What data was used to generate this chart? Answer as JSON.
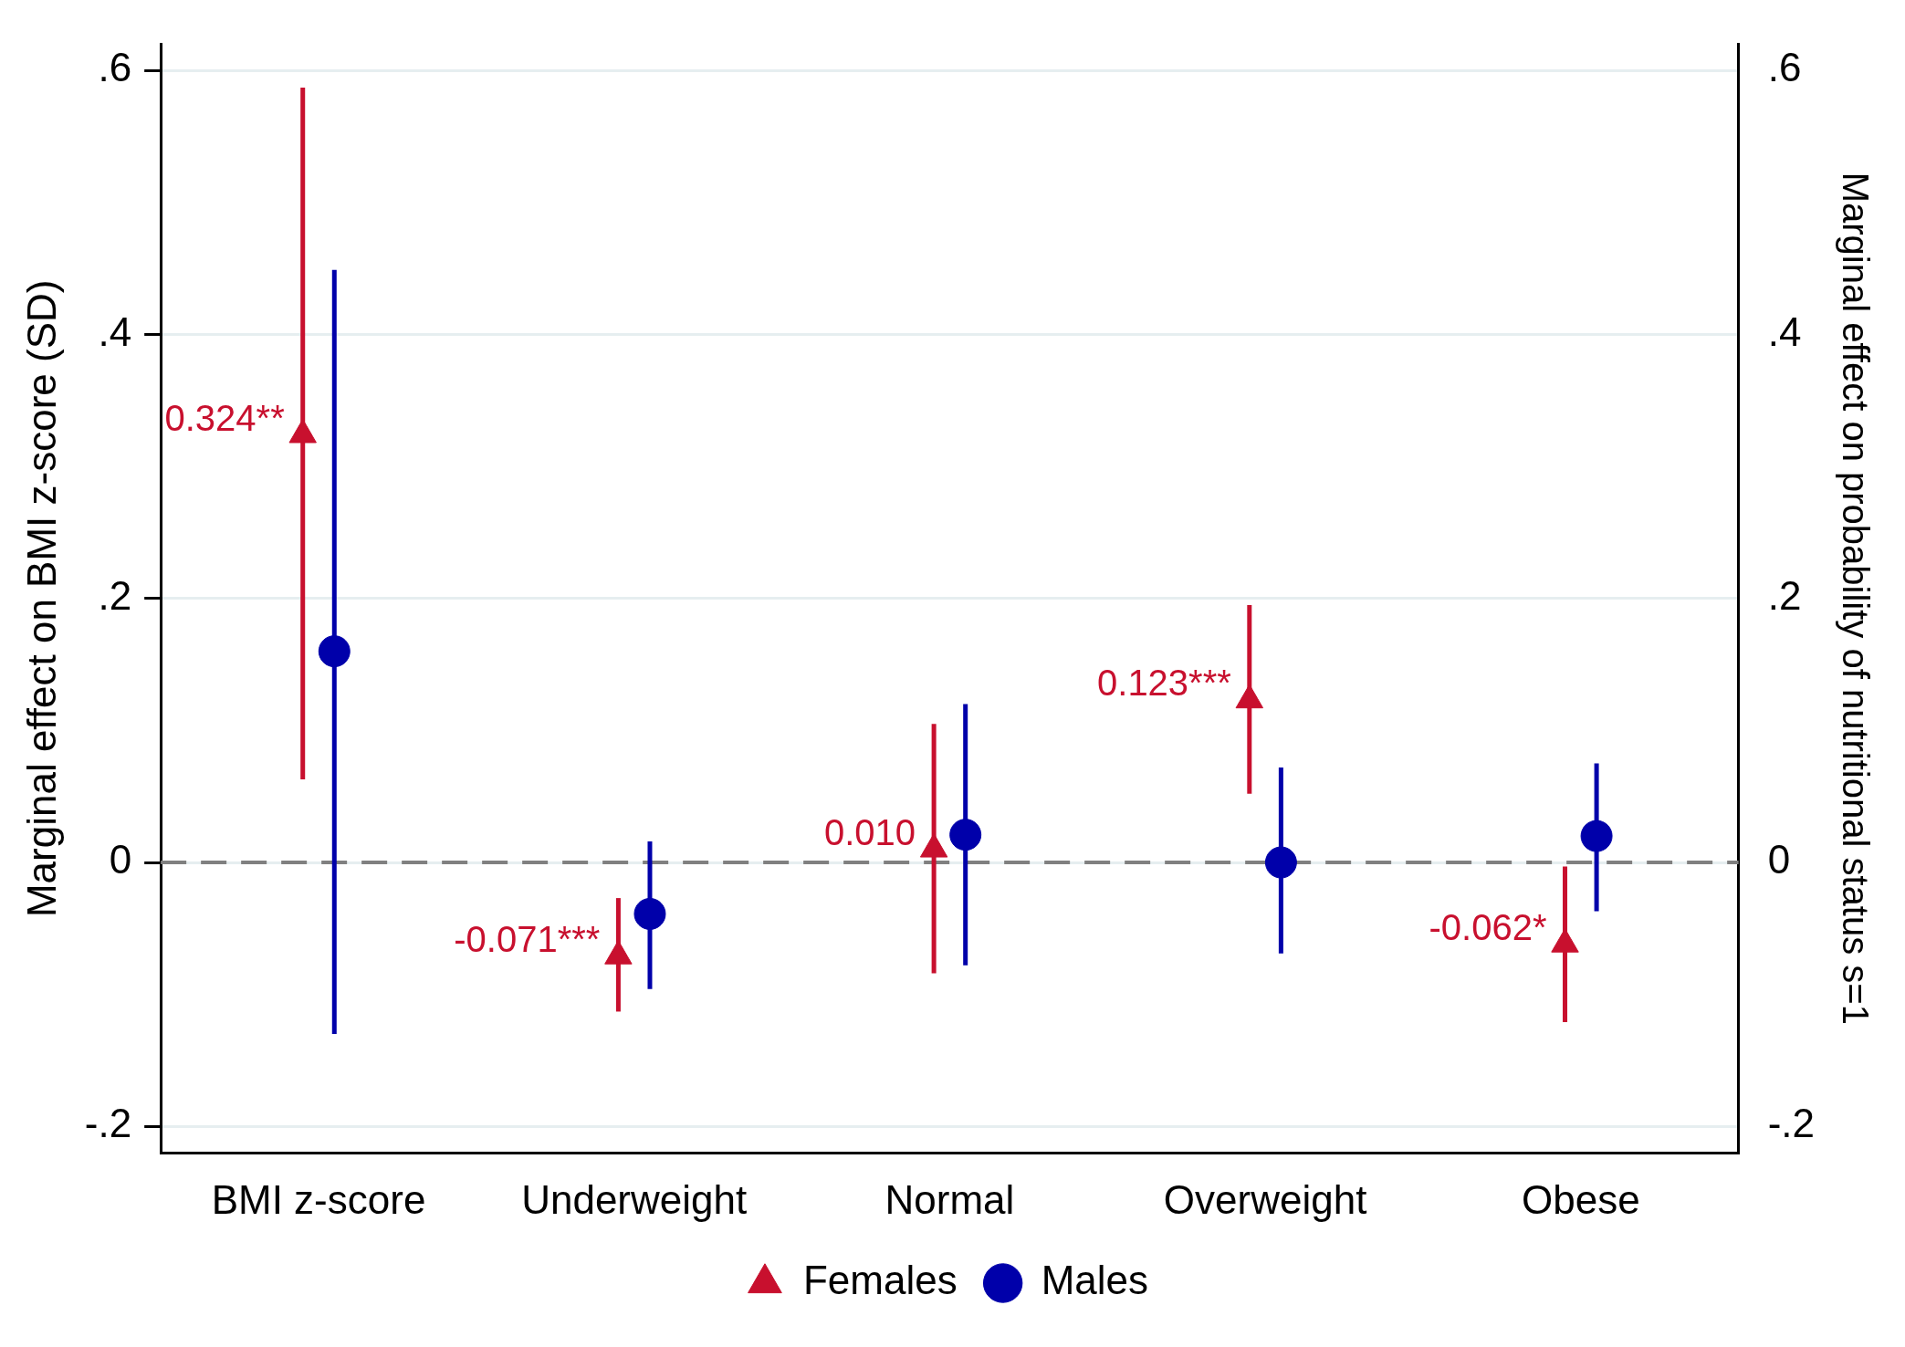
{
  "chart_data": {
    "type": "scatter",
    "ylabel": "Marginal effect on BMI z-score (SD)",
    "y2label": "Marginal effect on probability of nutritional status s=1",
    "categories": [
      "BMI z-score",
      "Underweight",
      "Normal",
      "Overweight",
      "Obese"
    ],
    "series": [
      {
        "name": "Females",
        "color": "#c8102e",
        "marker": "triangle",
        "values": [
          0.324,
          -0.071,
          0.01,
          0.123,
          -0.062
        ],
        "errors": [
          [
            0.063,
            0.587
          ],
          [
            -0.113,
            -0.027
          ],
          [
            -0.084,
            0.105
          ],
          [
            0.052,
            0.195
          ],
          [
            -0.121,
            -0.003
          ]
        ],
        "value_labels": [
          "0.324**",
          "-0.071***",
          "0.010",
          "0.123***",
          "-0.062*"
        ]
      },
      {
        "name": "Males",
        "color": "#0000aa",
        "marker": "circle",
        "values": [
          0.16,
          -0.039,
          0.021,
          0.0,
          0.02
        ],
        "errors": [
          [
            -0.13,
            0.449
          ],
          [
            -0.096,
            0.016
          ],
          [
            -0.078,
            0.12
          ],
          [
            -0.069,
            0.072
          ],
          [
            -0.037,
            0.075
          ]
        ]
      }
    ],
    "ylim": [
      -0.22,
      0.62
    ],
    "yticks": [
      {
        "value": -0.2,
        "label": "-.2"
      },
      0,
      {
        "value": 0.2,
        "label": ".2"
      },
      {
        "value": 0.4,
        "label": ".4"
      },
      {
        "value": 0.6,
        "label": ".6"
      }
    ],
    "y2lim": [
      -0.22,
      0.62
    ],
    "y2ticks": [
      {
        "value": -0.2,
        "label": "-.2"
      },
      0,
      {
        "value": 0.2,
        "label": ".2"
      },
      {
        "value": 0.4,
        "label": ".4"
      },
      {
        "value": 0.6,
        "label": ".6"
      }
    ],
    "ref_lines": [
      {
        "axis": "y",
        "value": 0,
        "color": "#808080",
        "line_style": "dashed"
      }
    ],
    "grid": "y",
    "legend": "bottom"
  }
}
